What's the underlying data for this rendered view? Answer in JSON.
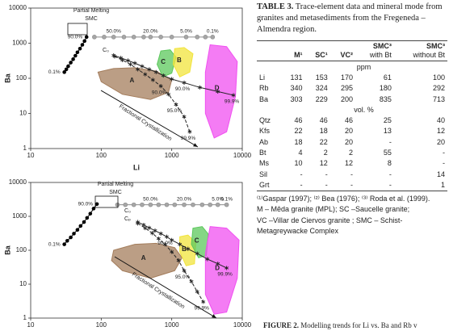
{
  "chart_data": [
    {
      "type": "scatter",
      "x_label": "Li",
      "y_label": "Ba",
      "log_x": true,
      "log_y": true,
      "xlim": [
        10,
        10000
      ],
      "ylim": [
        1,
        10000
      ],
      "xticks": [
        10,
        100,
        1000,
        10000
      ],
      "yticks": [
        1,
        10,
        100,
        1000,
        10000
      ],
      "annotations": {
        "partial_melting": "Partial Melting",
        "smc": "SMC",
        "fractional": "Fractional Crystallization",
        "c0": "C₀"
      },
      "fields": [
        {
          "label": "A",
          "color": "#a47d5c",
          "x": [
            90,
            150,
            300,
            600,
            1000,
            900,
            500,
            200,
            100
          ],
          "y": [
            150,
            190,
            200,
            160,
            90,
            40,
            25,
            35,
            80
          ]
        },
        {
          "label": "C",
          "color": "#5cc85c",
          "x": [
            700,
            950,
            1150,
            1000,
            750,
            620
          ],
          "y": [
            600,
            650,
            400,
            140,
            110,
            250
          ]
        },
        {
          "label": "B",
          "color": "#f2e43c",
          "x": [
            1100,
            1500,
            2000,
            1800,
            1300,
            1050
          ],
          "y": [
            700,
            750,
            500,
            150,
            110,
            250
          ]
        },
        {
          "label": "D",
          "color": "#f050f0",
          "x": [
            3500,
            6000,
            8500,
            8000,
            6000,
            4000,
            3000,
            3000
          ],
          "y": [
            900,
            800,
            300,
            30,
            3,
            2,
            10,
            150
          ]
        }
      ],
      "series": [
        {
          "color": "#000000",
          "marker": "dot",
          "x": [
            30,
            32,
            34,
            37,
            40,
            43,
            46,
            50,
            54,
            58,
            62
          ],
          "values": [
            150,
            180,
            220,
            280,
            350,
            440,
            550,
            700,
            900,
            1150,
            1500
          ],
          "point_labels": [
            "0.1%",
            null,
            null,
            null,
            null,
            null,
            null,
            null,
            null,
            null,
            "90.0%"
          ]
        },
        {
          "color": "#8c8c8c",
          "marker": "circle",
          "x": [
            80,
            110,
            150,
            210,
            290,
            400,
            500,
            700,
            1000,
            1600,
            2300,
            3000,
            3800
          ],
          "values": [
            1500,
            1500,
            1500,
            1500,
            1500,
            1500,
            1500,
            1500,
            1500,
            1500,
            1500,
            1500,
            1500
          ],
          "point_labels": [
            null,
            null,
            "50.0%",
            null,
            null,
            null,
            "20.0%",
            null,
            null,
            "5.0%",
            null,
            null,
            "0.1%"
          ]
        },
        {
          "color": "#222222",
          "marker": "star",
          "x": [
            150,
            190,
            240,
            300,
            380,
            480,
            600,
            760,
            1000,
            1500,
            2500,
            4500,
            7500
          ],
          "values": [
            450,
            380,
            320,
            270,
            220,
            180,
            150,
            120,
            95,
            75,
            55,
            42,
            33
          ],
          "point_labels": [
            null,
            null,
            null,
            null,
            null,
            null,
            null,
            null,
            null,
            "90.0%",
            null,
            null,
            "99.9%"
          ]
        },
        {
          "color": "#222222",
          "marker": "star",
          "dashed": true,
          "x": [
            155,
            200,
            260,
            330,
            420,
            540,
            700,
            900,
            1150,
            1500,
            1800
          ],
          "values": [
            420,
            330,
            250,
            180,
            130,
            90,
            60,
            35,
            18,
            8,
            3
          ],
          "point_labels": [
            null,
            null,
            null,
            null,
            null,
            null,
            "90.0%",
            null,
            "95.0%",
            null,
            "99.9%"
          ]
        }
      ]
    },
    {
      "type": "scatter",
      "x_label": "Li",
      "y_label": "Ba",
      "log_x": true,
      "log_y": true,
      "xlim": [
        10,
        10000
      ],
      "ylim": [
        1,
        10000
      ],
      "xticks": [
        10,
        100,
        1000,
        10000
      ],
      "yticks": [
        1,
        10,
        100,
        1000,
        10000
      ],
      "annotations": {
        "partial_melting": "Partial Melting",
        "smc": "SMC",
        "fractional": "Fractional Crystallization",
        "c0": "C₀",
        "cp": "Cₚ"
      },
      "fields": [
        {
          "label": "A",
          "color": "#a47d5c",
          "x": [
            150,
            300,
            600,
            1100,
            1400,
            1100,
            500,
            200,
            140
          ],
          "y": [
            100,
            150,
            160,
            120,
            60,
            25,
            15,
            25,
            50
          ]
        },
        {
          "label": "B",
          "color": "#f2e43c",
          "x": [
            1300,
            1700,
            2200,
            2100,
            1600,
            1300
          ],
          "y": [
            250,
            280,
            170,
            40,
            35,
            90
          ]
        },
        {
          "label": "C",
          "color": "#5cc85c",
          "x": [
            2000,
            2700,
            3300,
            3100,
            2400,
            1900
          ],
          "y": [
            450,
            500,
            300,
            70,
            60,
            150
          ]
        },
        {
          "label": "D",
          "color": "#f050f0",
          "x": [
            3500,
            6000,
            9000,
            8500,
            6000,
            4000,
            3000,
            3000
          ],
          "y": [
            500,
            450,
            200,
            15,
            1.5,
            1.3,
            5,
            80
          ]
        }
      ],
      "series": [
        {
          "color": "#000000",
          "marker": "dot",
          "x": [
            30,
            33,
            37,
            41,
            46,
            51,
            57,
            63,
            70,
            78,
            87
          ],
          "values": [
            150,
            190,
            240,
            310,
            400,
            520,
            680,
            900,
            1200,
            1700,
            2300
          ],
          "point_labels": [
            "0.1%",
            null,
            null,
            null,
            null,
            null,
            null,
            null,
            null,
            null,
            "90.0%"
          ]
        },
        {
          "color": "#8c8c8c",
          "marker": "circle",
          "x": [
            170,
            220,
            290,
            380,
            500,
            650,
            850,
            1100,
            1500,
            2000,
            2700,
            3500,
            4500,
            6000
          ],
          "values": [
            2200,
            2200,
            2200,
            2200,
            2200,
            2200,
            2200,
            2200,
            2200,
            2200,
            2200,
            2200,
            2200,
            2200
          ],
          "point_labels": [
            null,
            null,
            null,
            null,
            "50.0%",
            null,
            null,
            null,
            "20.0%",
            null,
            null,
            null,
            "5.0%",
            "0.1%"
          ]
        },
        {
          "color": "#222222",
          "marker": "star",
          "x": [
            330,
            400,
            480,
            580,
            700,
            850,
            1000,
            1300,
            1700,
            2300,
            3200,
            4500,
            6000
          ],
          "values": [
            680,
            560,
            460,
            380,
            310,
            250,
            200,
            150,
            110,
            80,
            55,
            40,
            30
          ],
          "point_labels": [
            null,
            null,
            null,
            null,
            null,
            "90.0%",
            null,
            null,
            null,
            null,
            null,
            null,
            "99.9%"
          ]
        },
        {
          "color": "#222222",
          "marker": "star",
          "dashed": true,
          "x": [
            330,
            420,
            530,
            650,
            800,
            1000,
            1250,
            1500,
            1900,
            2300,
            2800
          ],
          "values": [
            620,
            450,
            320,
            220,
            150,
            90,
            50,
            25,
            12,
            6,
            3
          ],
          "point_labels": [
            null,
            null,
            null,
            null,
            null,
            null,
            null,
            "95.0%",
            null,
            null,
            "99.9%"
          ]
        }
      ]
    }
  ],
  "table": {
    "label": "TABLE 3.",
    "title": "Trace-element data and mineral mode from granites and metasediments from the Fregeneda –Almendra region.",
    "columns": [
      "M¹",
      "SC¹",
      "VC²",
      {
        "label": "SMC³",
        "sub": "with Bt"
      },
      {
        "label": "SMC³",
        "sub": "without Bt"
      }
    ],
    "sections": [
      {
        "unit": "ppm",
        "rows": [
          [
            "Li",
            131,
            153,
            170,
            61,
            100
          ],
          [
            "Rb",
            340,
            324,
            295,
            180,
            292
          ],
          [
            "Ba",
            303,
            229,
            200,
            835,
            713
          ]
        ]
      },
      {
        "unit": "vol. %",
        "rows": [
          [
            "Qtz",
            46,
            46,
            46,
            25,
            40
          ],
          [
            "Kfs",
            22,
            18,
            20,
            13,
            12
          ],
          [
            "Ab",
            18,
            22,
            20,
            "-",
            20
          ],
          [
            "Bt",
            4,
            2,
            2,
            55,
            "-"
          ],
          [
            "Ms",
            10,
            12,
            12,
            8,
            "-"
          ],
          [
            "Sil",
            "-",
            "-",
            "-",
            "-",
            14
          ],
          [
            "Grt",
            "-",
            "-",
            "-",
            "-",
            1
          ]
        ]
      }
    ],
    "notes": [
      "⁽¹⁾Gaspar (1997); ⁽²⁾ Bea (1976); ⁽³⁾ Roda et al. (1999).",
      "M – Mêda granite (MPL); SC –Saucelle granite;",
      "VC –Villar de Ciervos granite ; SMC – Schist-Metagreywacke Complex"
    ]
  },
  "caption": {
    "label": "FIGURE 2.",
    "text": "Modelling trends for Li vs. Ba and Rb v"
  }
}
